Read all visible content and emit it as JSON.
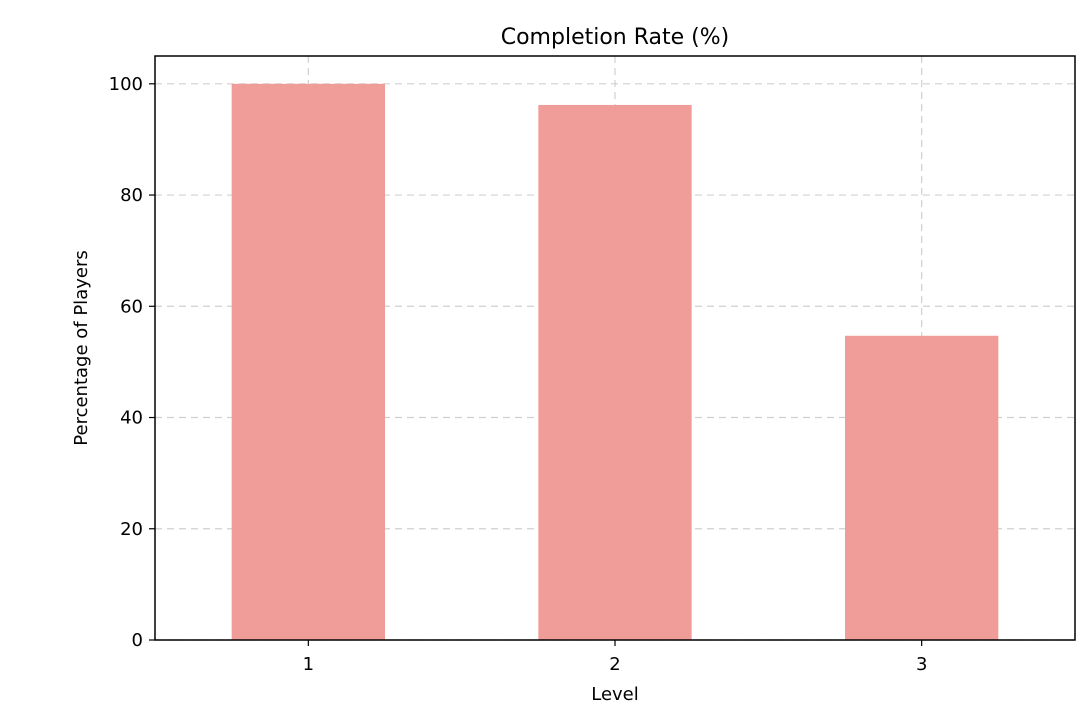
{
  "chart_data": {
    "type": "bar",
    "title": "Completion Rate (%)",
    "xlabel": "Level",
    "ylabel": "Percentage of Players",
    "categories": [
      "1",
      "2",
      "3"
    ],
    "values": [
      100,
      96.2,
      54.7
    ],
    "ylim": [
      0,
      105
    ],
    "yticks": [
      0,
      20,
      40,
      60,
      80,
      100
    ],
    "grid": true,
    "bar_color": "#f09d99"
  }
}
